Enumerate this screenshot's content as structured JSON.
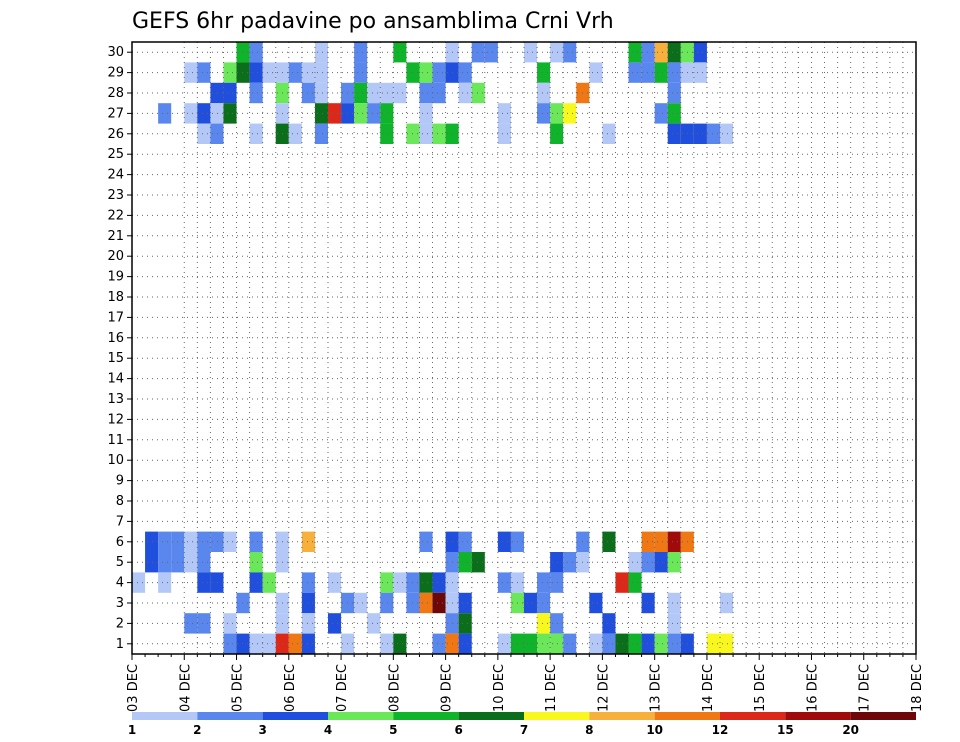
{
  "chart_data": {
    "type": "heatmap",
    "title": "GEFS 6hr padavine po ansamblima Crni Vrh",
    "x_labels": [
      "03 DEC",
      "04 DEC",
      "05 DEC",
      "06 DEC",
      "07 DEC",
      "08 DEC",
      "09 DEC",
      "10 DEC",
      "11 DEC",
      "12 DEC",
      "13 DEC",
      "14 DEC",
      "15 DEC",
      "16 DEC",
      "17 DEC",
      "18 DEC"
    ],
    "y_labels": [
      "1",
      "2",
      "3",
      "4",
      "5",
      "6",
      "7",
      "8",
      "9",
      "10",
      "11",
      "12",
      "13",
      "14",
      "15",
      "16",
      "17",
      "18",
      "19",
      "20",
      "21",
      "22",
      "23",
      "24",
      "25",
      "26",
      "27",
      "28",
      "29",
      "30"
    ],
    "ylim": [
      1,
      30
    ],
    "time_step": "6hr",
    "grid": true,
    "legend": {
      "placement": "bottom",
      "levels": [
        "1",
        "2",
        "3",
        "4",
        "5",
        "6",
        "7",
        "8",
        "10",
        "12",
        "15",
        "20"
      ],
      "colors": [
        "#b4c8f8",
        "#5a87ee",
        "#1f4fdc",
        "#6be85a",
        "#0fb42a",
        "#0a6e1a",
        "#f8f81e",
        "#f8b03c",
        "#f07814",
        "#dc2818",
        "#a00a0a",
        "#6e0808"
      ]
    },
    "cells": [
      [
        6,
        1,
        2
      ],
      [
        6,
        2,
        1
      ],
      [
        6,
        3,
        1
      ],
      [
        6,
        4,
        0
      ],
      [
        6,
        5,
        1
      ],
      [
        6,
        6,
        1
      ],
      [
        6,
        7,
        0
      ],
      [
        6,
        9,
        1
      ],
      [
        6,
        11,
        0
      ],
      [
        6,
        13,
        7
      ],
      [
        6,
        22,
        1
      ],
      [
        6,
        24,
        2
      ],
      [
        6,
        25,
        1
      ],
      [
        6,
        28,
        2
      ],
      [
        6,
        29,
        1
      ],
      [
        6,
        34,
        1
      ],
      [
        6,
        36,
        5
      ],
      [
        6,
        39,
        8
      ],
      [
        6,
        40,
        8
      ],
      [
        6,
        41,
        10
      ],
      [
        6,
        42,
        8
      ],
      [
        5,
        1,
        2
      ],
      [
        5,
        2,
        1
      ],
      [
        5,
        3,
        1
      ],
      [
        5,
        4,
        0
      ],
      [
        5,
        5,
        1
      ],
      [
        5,
        9,
        3
      ],
      [
        5,
        11,
        0
      ],
      [
        5,
        24,
        1
      ],
      [
        5,
        25,
        4
      ],
      [
        5,
        26,
        5
      ],
      [
        5,
        32,
        2
      ],
      [
        5,
        33,
        1
      ],
      [
        5,
        34,
        0
      ],
      [
        5,
        38,
        0
      ],
      [
        5,
        39,
        1
      ],
      [
        5,
        40,
        2
      ],
      [
        5,
        41,
        3
      ],
      [
        4,
        0,
        0
      ],
      [
        4,
        2,
        0
      ],
      [
        4,
        5,
        2
      ],
      [
        4,
        6,
        2
      ],
      [
        4,
        9,
        2
      ],
      [
        4,
        10,
        3
      ],
      [
        4,
        13,
        1
      ],
      [
        4,
        15,
        0
      ],
      [
        4,
        19,
        3
      ],
      [
        4,
        20,
        0
      ],
      [
        4,
        21,
        1
      ],
      [
        4,
        22,
        5
      ],
      [
        4,
        23,
        2
      ],
      [
        4,
        24,
        0
      ],
      [
        4,
        28,
        1
      ],
      [
        4,
        29,
        0
      ],
      [
        4,
        31,
        1
      ],
      [
        4,
        32,
        1
      ],
      [
        4,
        37,
        9
      ],
      [
        4,
        38,
        4
      ],
      [
        3,
        8,
        1
      ],
      [
        3,
        11,
        0
      ],
      [
        3,
        13,
        2
      ],
      [
        3,
        16,
        1
      ],
      [
        3,
        17,
        0
      ],
      [
        3,
        19,
        1
      ],
      [
        3,
        21,
        1
      ],
      [
        3,
        22,
        8
      ],
      [
        3,
        23,
        11
      ],
      [
        3,
        24,
        0
      ],
      [
        3,
        25,
        2
      ],
      [
        3,
        29,
        3
      ],
      [
        3,
        30,
        2
      ],
      [
        3,
        31,
        1
      ],
      [
        3,
        35,
        2
      ],
      [
        3,
        39,
        2
      ],
      [
        3,
        41,
        0
      ],
      [
        3,
        45,
        0
      ],
      [
        2,
        4,
        1
      ],
      [
        2,
        5,
        1
      ],
      [
        2,
        7,
        0
      ],
      [
        2,
        11,
        0
      ],
      [
        2,
        13,
        0
      ],
      [
        2,
        15,
        2
      ],
      [
        2,
        18,
        0
      ],
      [
        2,
        24,
        1
      ],
      [
        2,
        25,
        5
      ],
      [
        2,
        31,
        6
      ],
      [
        2,
        32,
        1
      ],
      [
        2,
        36,
        2
      ],
      [
        2,
        41,
        0
      ],
      [
        1,
        7,
        1
      ],
      [
        1,
        8,
        2
      ],
      [
        1,
        9,
        0
      ],
      [
        1,
        10,
        0
      ],
      [
        1,
        11,
        9
      ],
      [
        1,
        12,
        8
      ],
      [
        1,
        13,
        2
      ],
      [
        1,
        16,
        0
      ],
      [
        1,
        19,
        0
      ],
      [
        1,
        20,
        5
      ],
      [
        1,
        23,
        1
      ],
      [
        1,
        24,
        8
      ],
      [
        1,
        25,
        2
      ],
      [
        1,
        28,
        0
      ],
      [
        1,
        29,
        4
      ],
      [
        1,
        30,
        4
      ],
      [
        1,
        31,
        3
      ],
      [
        1,
        32,
        3
      ],
      [
        1,
        33,
        1
      ],
      [
        1,
        35,
        0
      ],
      [
        1,
        36,
        1
      ],
      [
        1,
        37,
        5
      ],
      [
        1,
        38,
        4
      ],
      [
        1,
        39,
        2
      ],
      [
        1,
        40,
        3
      ],
      [
        1,
        41,
        1
      ],
      [
        1,
        42,
        2
      ],
      [
        1,
        44,
        6
      ],
      [
        1,
        45,
        6
      ],
      [
        0,
        8,
        4
      ],
      [
        0,
        9,
        1
      ],
      [
        0,
        14,
        0
      ],
      [
        0,
        17,
        1
      ],
      [
        0,
        20,
        4
      ],
      [
        0,
        24,
        0
      ],
      [
        0,
        26,
        1
      ],
      [
        0,
        27,
        1
      ],
      [
        0,
        30,
        0
      ],
      [
        0,
        32,
        0
      ],
      [
        0,
        33,
        1
      ],
      [
        0,
        38,
        4
      ],
      [
        0,
        39,
        1
      ],
      [
        0,
        40,
        7
      ],
      [
        0,
        41,
        5
      ],
      [
        0,
        42,
        3
      ],
      [
        0,
        43,
        2
      ],
      [
        -1,
        4,
        0
      ],
      [
        -1,
        5,
        1
      ],
      [
        -1,
        7,
        3
      ],
      [
        -1,
        8,
        5
      ],
      [
        -1,
        9,
        2
      ],
      [
        -1,
        10,
        0
      ],
      [
        -1,
        11,
        0
      ],
      [
        -1,
        12,
        1
      ],
      [
        -1,
        13,
        0
      ],
      [
        -1,
        14,
        0
      ],
      [
        -1,
        17,
        1
      ],
      [
        -1,
        21,
        4
      ],
      [
        -1,
        22,
        3
      ],
      [
        -1,
        23,
        1
      ],
      [
        -1,
        24,
        2
      ],
      [
        -1,
        25,
        1
      ],
      [
        -1,
        31,
        4
      ],
      [
        -1,
        35,
        0
      ],
      [
        -1,
        38,
        1
      ],
      [
        -1,
        39,
        1
      ],
      [
        -1,
        40,
        4
      ],
      [
        -1,
        41,
        1
      ],
      [
        -1,
        42,
        0
      ],
      [
        -1,
        43,
        0
      ],
      [
        -2,
        6,
        2
      ],
      [
        -2,
        7,
        2
      ],
      [
        -2,
        9,
        1
      ],
      [
        -2,
        11,
        3
      ],
      [
        -2,
        13,
        1
      ],
      [
        -2,
        14,
        0
      ],
      [
        -2,
        16,
        1
      ],
      [
        -2,
        17,
        4
      ],
      [
        -2,
        18,
        0
      ],
      [
        -2,
        19,
        0
      ],
      [
        -2,
        20,
        0
      ],
      [
        -2,
        22,
        1
      ],
      [
        -2,
        23,
        1
      ],
      [
        -2,
        25,
        0
      ],
      [
        -2,
        26,
        3
      ],
      [
        -2,
        31,
        0
      ],
      [
        -2,
        34,
        8
      ],
      [
        -2,
        41,
        1
      ],
      [
        -3,
        2,
        1
      ],
      [
        -3,
        4,
        0
      ],
      [
        -3,
        5,
        2
      ],
      [
        -3,
        6,
        0
      ],
      [
        -3,
        7,
        5
      ],
      [
        -3,
        11,
        0
      ],
      [
        -3,
        14,
        5
      ],
      [
        -3,
        15,
        9
      ],
      [
        -3,
        16,
        2
      ],
      [
        -3,
        17,
        3
      ],
      [
        -3,
        18,
        1
      ],
      [
        -3,
        19,
        4
      ],
      [
        -3,
        22,
        0
      ],
      [
        -3,
        28,
        0
      ],
      [
        -3,
        31,
        1
      ],
      [
        -3,
        32,
        3
      ],
      [
        -3,
        33,
        6
      ],
      [
        -3,
        40,
        1
      ],
      [
        -3,
        41,
        4
      ],
      [
        -4,
        5,
        0
      ],
      [
        -4,
        6,
        1
      ],
      [
        -4,
        9,
        0
      ],
      [
        -4,
        11,
        5
      ],
      [
        -4,
        12,
        0
      ],
      [
        -4,
        14,
        1
      ],
      [
        -4,
        19,
        4
      ],
      [
        -4,
        21,
        3
      ],
      [
        -4,
        22,
        0
      ],
      [
        -4,
        23,
        3
      ],
      [
        -4,
        24,
        4
      ],
      [
        -4,
        28,
        0
      ],
      [
        -4,
        32,
        4
      ],
      [
        -4,
        36,
        0
      ],
      [
        -4,
        41,
        2
      ],
      [
        -4,
        42,
        2
      ],
      [
        -4,
        43,
        2
      ],
      [
        -4,
        44,
        1
      ],
      [
        -4,
        45,
        0
      ]
    ]
  }
}
